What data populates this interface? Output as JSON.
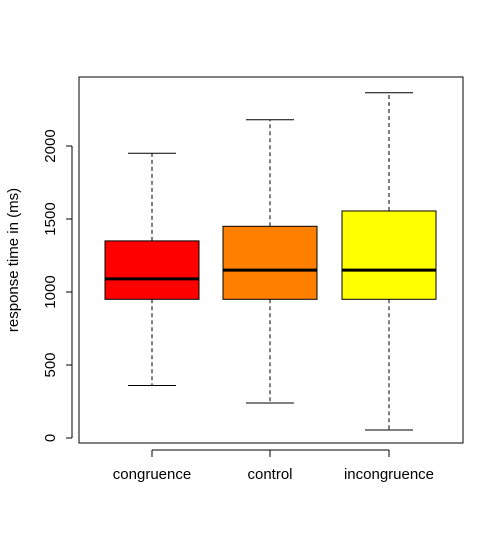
{
  "chart_data": {
    "type": "boxplot",
    "ylabel": "response time in (ms)",
    "xlabel": "",
    "ylim": [
      0,
      2400
    ],
    "y_ticks": [
      0,
      500,
      1000,
      1500,
      2000
    ],
    "categories": [
      "congruence",
      "control",
      "incongruence"
    ],
    "colors": [
      "#FF0000",
      "#FF8000",
      "#FFFF00"
    ],
    "grid": false,
    "boxes": [
      {
        "category": "congruence",
        "whisker_low": 360,
        "q1": 950,
        "median": 1090,
        "q3": 1350,
        "whisker_high": 1950
      },
      {
        "category": "control",
        "whisker_low": 240,
        "q1": 950,
        "median": 1150,
        "q3": 1450,
        "whisker_high": 2180
      },
      {
        "category": "incongruence",
        "whisker_low": 55,
        "q1": 950,
        "median": 1150,
        "q3": 1555,
        "whisker_high": 2365
      }
    ]
  }
}
